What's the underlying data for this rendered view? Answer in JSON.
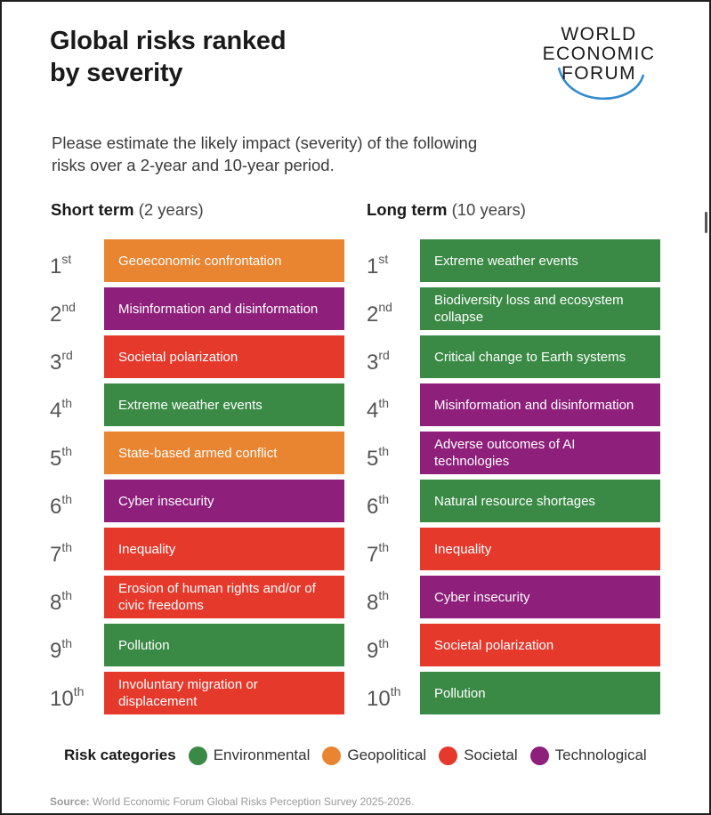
{
  "title_lines": [
    "Global risks ranked",
    "by severity"
  ],
  "logo": {
    "lines": [
      "WORLD",
      "ECONOMIC",
      "FORUM"
    ]
  },
  "subtitle_lines": [
    "Please estimate the likely impact (severity) of the following",
    "risks over a 2-year and 10-year period."
  ],
  "colors": {
    "Environmental": "#3a8a46",
    "Geopolitical": "#e98430",
    "Societal": "#e5392c",
    "Technological": "#8e1f7a"
  },
  "columns": [
    {
      "heading_bold": "Short term",
      "heading_light": "(2 years)",
      "rows": [
        {
          "rank": "1",
          "suffix": "st",
          "risk": "Geoeconomic confrontation",
          "category": "Geopolitical"
        },
        {
          "rank": "2",
          "suffix": "nd",
          "risk": "Misinformation and disinformation",
          "category": "Technological"
        },
        {
          "rank": "3",
          "suffix": "rd",
          "risk": "Societal polarization",
          "category": "Societal"
        },
        {
          "rank": "4",
          "suffix": "th",
          "risk": "Extreme weather events",
          "category": "Environmental"
        },
        {
          "rank": "5",
          "suffix": "th",
          "risk": "State-based armed conflict",
          "category": "Geopolitical"
        },
        {
          "rank": "6",
          "suffix": "th",
          "risk": "Cyber insecurity",
          "category": "Technological"
        },
        {
          "rank": "7",
          "suffix": "th",
          "risk": "Inequality",
          "category": "Societal"
        },
        {
          "rank": "8",
          "suffix": "th",
          "risk": "Erosion of human rights and/or of civic freedoms",
          "category": "Societal"
        },
        {
          "rank": "9",
          "suffix": "th",
          "risk": "Pollution",
          "category": "Environmental"
        },
        {
          "rank": "10",
          "suffix": "th",
          "risk": "Involuntary migration or displacement",
          "category": "Societal"
        }
      ]
    },
    {
      "heading_bold": "Long term",
      "heading_light": "(10 years)",
      "rows": [
        {
          "rank": "1",
          "suffix": "st",
          "risk": "Extreme weather events",
          "category": "Environmental"
        },
        {
          "rank": "2",
          "suffix": "nd",
          "risk": "Biodiversity loss and ecosystem collapse",
          "category": "Environmental"
        },
        {
          "rank": "3",
          "suffix": "rd",
          "risk": "Critical change to Earth systems",
          "category": "Environmental"
        },
        {
          "rank": "4",
          "suffix": "th",
          "risk": "Misinformation and disinformation",
          "category": "Technological"
        },
        {
          "rank": "5",
          "suffix": "th",
          "risk": "Adverse outcomes of AI technologies",
          "category": "Technological"
        },
        {
          "rank": "6",
          "suffix": "th",
          "risk": "Natural resource shortages",
          "category": "Environmental"
        },
        {
          "rank": "7",
          "suffix": "th",
          "risk": "Inequality",
          "category": "Societal"
        },
        {
          "rank": "8",
          "suffix": "th",
          "risk": "Cyber insecurity",
          "category": "Technological"
        },
        {
          "rank": "9",
          "suffix": "th",
          "risk": "Societal polarization",
          "category": "Societal"
        },
        {
          "rank": "10",
          "suffix": "th",
          "risk": "Pollution",
          "category": "Environmental"
        }
      ]
    }
  ],
  "legend": {
    "title": "Risk categories",
    "items": [
      "Environmental",
      "Geopolitical",
      "Societal",
      "Technological"
    ]
  },
  "source": {
    "label": "Source:",
    "text": "World Economic Forum Global Risks Perception Survey 2025-2026."
  }
}
